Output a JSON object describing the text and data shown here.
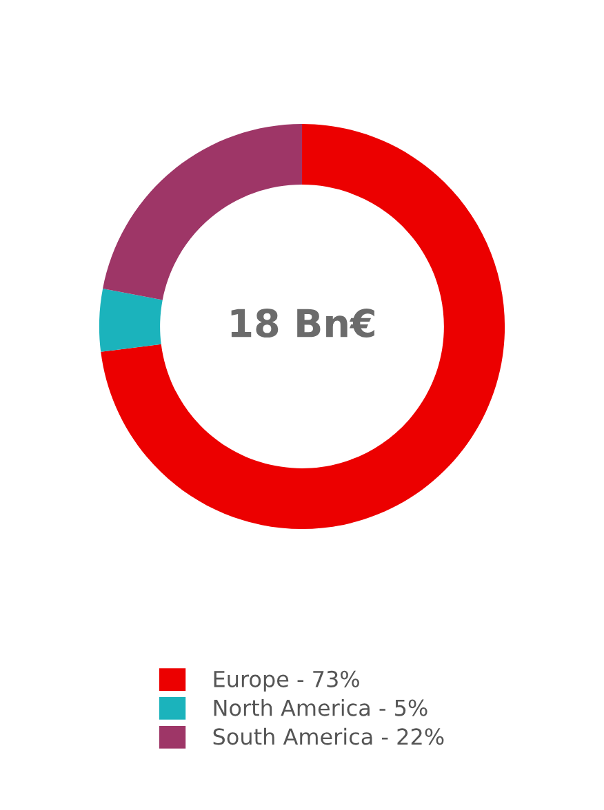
{
  "chart_data": {
    "type": "donut",
    "categories": [
      "Europe - 73%",
      "North America - 5%",
      "South America - 22%"
    ],
    "values": [
      73,
      5,
      22
    ],
    "colors": [
      "#ec0000",
      "#1bb3bc",
      "#9e3667"
    ],
    "annotations": [
      "18 Bn€"
    ],
    "legend": "bottom"
  }
}
